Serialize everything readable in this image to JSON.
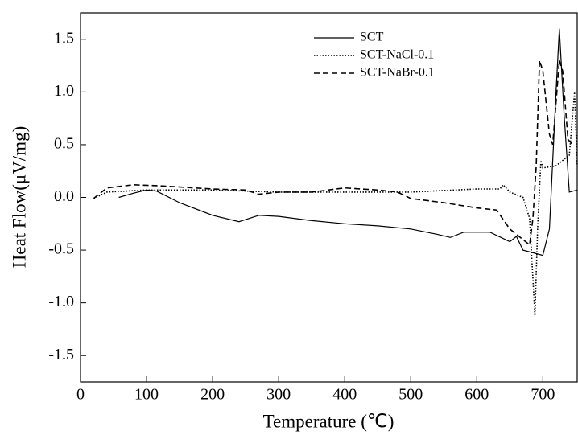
{
  "chart_data": {
    "type": "line",
    "x_label": "Temperature (℃)",
    "y_label": "Heat Flow(μV/mg)",
    "xlim": [
      0,
      752
    ],
    "ylim": [
      -1.75,
      1.75
    ],
    "xticks": [
      0,
      100,
      200,
      300,
      400,
      500,
      600,
      700
    ],
    "yticks": [
      {
        "value": 1.5,
        "label": "1.5"
      },
      {
        "value": 1,
        "label": "1.0"
      },
      {
        "value": 0.5,
        "label": "0.5"
      },
      {
        "value": 0,
        "label": "0.0"
      },
      {
        "value": -0.5,
        "label": "-0.5"
      },
      {
        "value": -1,
        "label": "-1.0"
      },
      {
        "value": -1.5,
        "label": "-1.5"
      }
    ],
    "legend": "top-center",
    "series": [
      {
        "name": "SCT",
        "color": "#000000",
        "linestyle": "solid",
        "x": [
          58,
          80,
          100,
          115,
          150,
          200,
          240,
          270,
          300,
          350,
          400,
          450,
          500,
          540,
          560,
          580,
          620,
          650,
          660,
          670,
          700,
          710,
          720,
          725,
          732,
          740,
          752
        ],
        "values": [
          0.0,
          0.04,
          0.07,
          0.06,
          -0.05,
          -0.17,
          -0.23,
          -0.17,
          -0.18,
          -0.22,
          -0.25,
          -0.27,
          -0.3,
          -0.35,
          -0.38,
          -0.33,
          -0.33,
          -0.42,
          -0.37,
          -0.5,
          -0.55,
          -0.3,
          1.0,
          1.6,
          0.8,
          0.05,
          0.07
        ]
      },
      {
        "name": "SCT-NaCl-0.1",
        "color": "#000000",
        "linestyle": "dotted",
        "x": [
          20,
          40,
          100,
          200,
          300,
          400,
          500,
          600,
          635,
          640,
          650,
          670,
          680,
          688,
          692,
          697,
          700,
          720,
          740,
          748,
          752
        ],
        "values": [
          -0.01,
          0.05,
          0.07,
          0.07,
          0.05,
          0.05,
          0.05,
          0.08,
          0.08,
          0.12,
          0.05,
          0.0,
          -0.2,
          -1.12,
          -0.3,
          0.35,
          0.28,
          0.3,
          0.4,
          1.0,
          0.3
        ]
      },
      {
        "name": "SCT-NaBr-0.1",
        "color": "#000000",
        "linestyle": "dashed",
        "x": [
          20,
          40,
          80,
          120,
          200,
          250,
          270,
          300,
          350,
          400,
          450,
          480,
          500,
          550,
          600,
          630,
          650,
          670,
          680,
          685,
          690,
          695,
          700,
          710,
          715,
          725,
          730,
          738,
          745
        ],
        "values": [
          -0.01,
          0.09,
          0.12,
          0.11,
          0.08,
          0.07,
          0.03,
          0.05,
          0.05,
          0.09,
          0.07,
          0.05,
          -0.01,
          -0.05,
          -0.1,
          -0.12,
          -0.3,
          -0.4,
          -0.45,
          -0.2,
          0.3,
          1.3,
          1.2,
          0.6,
          0.5,
          1.3,
          1.2,
          0.55,
          0.5
        ]
      }
    ]
  }
}
